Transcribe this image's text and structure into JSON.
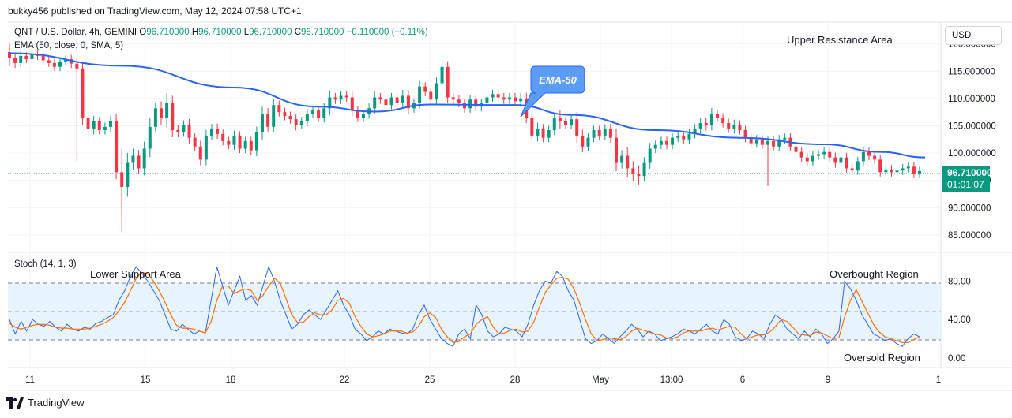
{
  "header": {
    "publisher": "bukky456 published on TradingView.com, May 12, 2024 07:58 UTC+1"
  },
  "legend": {
    "symbol": "QNT / U.S. Dollar, 4h, GEMINI",
    "o_label": "O",
    "o": "96.710000",
    "h_label": "H",
    "h": "96.710000",
    "l_label": "L",
    "l": "96.710000",
    "c_label": "C",
    "c": "96.710000",
    "change": "−0.110000 (−0.11%)",
    "ema": "EMA (50, close, 0, SMA, 5)"
  },
  "stoch_legend": "Stoch (14, 1, 3)",
  "annotations": {
    "upper_resistance": "Upper Resistance Area",
    "ema_callout": "EMA-50",
    "lower_support": "Lower Support Area",
    "overbought": "Overbought Region",
    "oversold": "Oversold Region"
  },
  "currency_button": "USD",
  "price_label": {
    "price": "96.710000",
    "countdown": "01:01:07"
  },
  "footer_brand": "TradingView",
  "colors": {
    "up": "#089981",
    "down": "#f23645",
    "ema": "#2962ff",
    "k": "#2962ff",
    "d": "#ff6d00",
    "band": "#e3f2fd"
  },
  "chart_data": [
    {
      "type": "candlestick",
      "x_ticks": [
        "11",
        "15",
        "18",
        "22",
        "25",
        "28",
        "May",
        "13:00",
        "6",
        "9",
        "1"
      ],
      "y_ticks": [
        "85.000000",
        "90.000000",
        "95.000000",
        "100.000000",
        "105.000000",
        "110.000000",
        "115.000000",
        "120.000000"
      ],
      "ylim": [
        81.8,
        124
      ],
      "last_price": 96.71,
      "closes": [
        117.5,
        116.5,
        117.8,
        117.2,
        118.2,
        117.8,
        117.0,
        116.5,
        115.8,
        116.8,
        117.2,
        116.4,
        115.5,
        106.5,
        104.5,
        105.8,
        104.2,
        104.8,
        105.8,
        96.5,
        93.8,
        98.2,
        99.5,
        97.2,
        100.8,
        104.8,
        108.2,
        106.5,
        109.2,
        104.2,
        103.8,
        105.2,
        102.8,
        101.2,
        98.8,
        103.2,
        104.5,
        103.5,
        102.2,
        101.5,
        103.2,
        100.8,
        102.2,
        100.5,
        103.8,
        107.2,
        104.8,
        108.8,
        107.5,
        106.8,
        106.2,
        105.2,
        105.8,
        107.2,
        107.8,
        106.5,
        108.2,
        110.2,
        109.8,
        110.5,
        110.2,
        107.8,
        106.5,
        107.2,
        108.2,
        110.2,
        109.8,
        108.8,
        110.2,
        109.2,
        110.5,
        108.2,
        109.2,
        112.2,
        111.2,
        109.8,
        112.8,
        115.8,
        110.2,
        109.8,
        109.2,
        108.2,
        109.8,
        108.5,
        109.2,
        110.2,
        110.8,
        110.2,
        109.8,
        110.2,
        109.5,
        110.0,
        106.5,
        103.2,
        104.5,
        102.8,
        104.2,
        106.5,
        105.8,
        105.2,
        106.2,
        103.2,
        101.2,
        102.8,
        104.2,
        103.2,
        104.5,
        102.8,
        98.2,
        99.5,
        97.2,
        96.2,
        95.8,
        98.2,
        100.8,
        101.5,
        102.2,
        101.5,
        102.8,
        103.2,
        102.5,
        103.5,
        104.5,
        105.5,
        105.2,
        107.2,
        106.5,
        105.5,
        104.5,
        105.2,
        104.2,
        102.8,
        101.8,
        102.5,
        101.5,
        102.2,
        101.2,
        102.5,
        102.8,
        101.2,
        100.2,
        99.2,
        98.5,
        99.5,
        99.8,
        100.2,
        99.2,
        98.2,
        99.2,
        97.2,
        96.8,
        98.5,
        100.2,
        99.5,
        98.8,
        96.5,
        97.0,
        96.5,
        96.8,
        97.2,
        97.5,
        96.2,
        96.71
      ]
    },
    {
      "type": "line",
      "name": "EMA (50, close, 0, SMA, 5)",
      "points_x_index": [
        0,
        20,
        40,
        55,
        65,
        75,
        90,
        100,
        115,
        130,
        145,
        155,
        163
      ],
      "values": [
        118.3,
        116.0,
        112.0,
        108.5,
        107.6,
        108.9,
        108.8,
        107.0,
        104.2,
        102.8,
        101.6,
        100.2,
        99.2
      ]
    },
    {
      "type": "line",
      "title": "Stoch (14, 1, 3)",
      "y_ticks": [
        "0.00",
        "40.00",
        "80.00"
      ],
      "band": [
        20,
        80
      ],
      "ylim": [
        -10,
        110
      ],
      "k": [
        40,
        25,
        38,
        28,
        40,
        35,
        33,
        38,
        32,
        28,
        35,
        30,
        28,
        32,
        30,
        36,
        38,
        42,
        45,
        60,
        70,
        85,
        95,
        88,
        80,
        70,
        60,
        45,
        30,
        28,
        35,
        30,
        25,
        28,
        26,
        60,
        95,
        75,
        55,
        70,
        85,
        60,
        65,
        55,
        75,
        95,
        80,
        60,
        45,
        30,
        35,
        45,
        50,
        45,
        40,
        50,
        60,
        70,
        55,
        45,
        30,
        25,
        18,
        22,
        28,
        25,
        30,
        28,
        26,
        25,
        30,
        45,
        55,
        40,
        30,
        20,
        15,
        12,
        25,
        30,
        20,
        55,
        45,
        28,
        22,
        25,
        32,
        30,
        28,
        22,
        35,
        55,
        70,
        80,
        78,
        90,
        85,
        70,
        60,
        40,
        20,
        15,
        18,
        25,
        20,
        15,
        22,
        28,
        35,
        30,
        22,
        28,
        25,
        18,
        20,
        22,
        25,
        30,
        28,
        25,
        30,
        35,
        28,
        25,
        40,
        35,
        22,
        18,
        20,
        28,
        25,
        20,
        35,
        45,
        40,
        30,
        25,
        20,
        28,
        22,
        30,
        25,
        15,
        20,
        28,
        80,
        72,
        60,
        45,
        35,
        25,
        22,
        18,
        20,
        15,
        12,
        20,
        25,
        22
      ],
      "d": [
        36,
        32,
        30,
        32,
        34,
        35,
        35,
        34,
        32,
        31,
        31,
        30,
        30,
        30,
        31,
        33,
        35,
        38,
        42,
        49,
        58,
        70,
        83,
        89,
        88,
        80,
        70,
        58,
        45,
        34,
        31,
        31,
        30,
        28,
        26,
        38,
        60,
        75,
        75,
        67,
        70,
        72,
        70,
        60,
        65,
        75,
        83,
        78,
        62,
        45,
        37,
        37,
        43,
        47,
        45,
        45,
        50,
        60,
        62,
        57,
        43,
        33,
        25,
        22,
        23,
        25,
        28,
        28,
        28,
        26,
        27,
        33,
        43,
        47,
        42,
        30,
        22,
        16,
        17,
        22,
        25,
        35,
        40,
        43,
        32,
        25,
        26,
        29,
        30,
        27,
        28,
        37,
        53,
        68,
        76,
        83,
        84,
        82,
        72,
        57,
        40,
        25,
        18,
        19,
        21,
        20,
        19,
        22,
        28,
        31,
        29,
        27,
        25,
        24,
        21,
        20,
        22,
        26,
        28,
        28,
        28,
        30,
        31,
        29,
        31,
        33,
        32,
        25,
        20,
        22,
        24,
        24,
        27,
        33,
        40,
        38,
        32,
        25,
        24,
        23,
        27,
        26,
        23,
        20,
        21,
        43,
        60,
        71,
        59,
        47,
        35,
        27,
        22,
        20,
        18,
        16,
        16,
        19,
        22
      ]
    }
  ]
}
